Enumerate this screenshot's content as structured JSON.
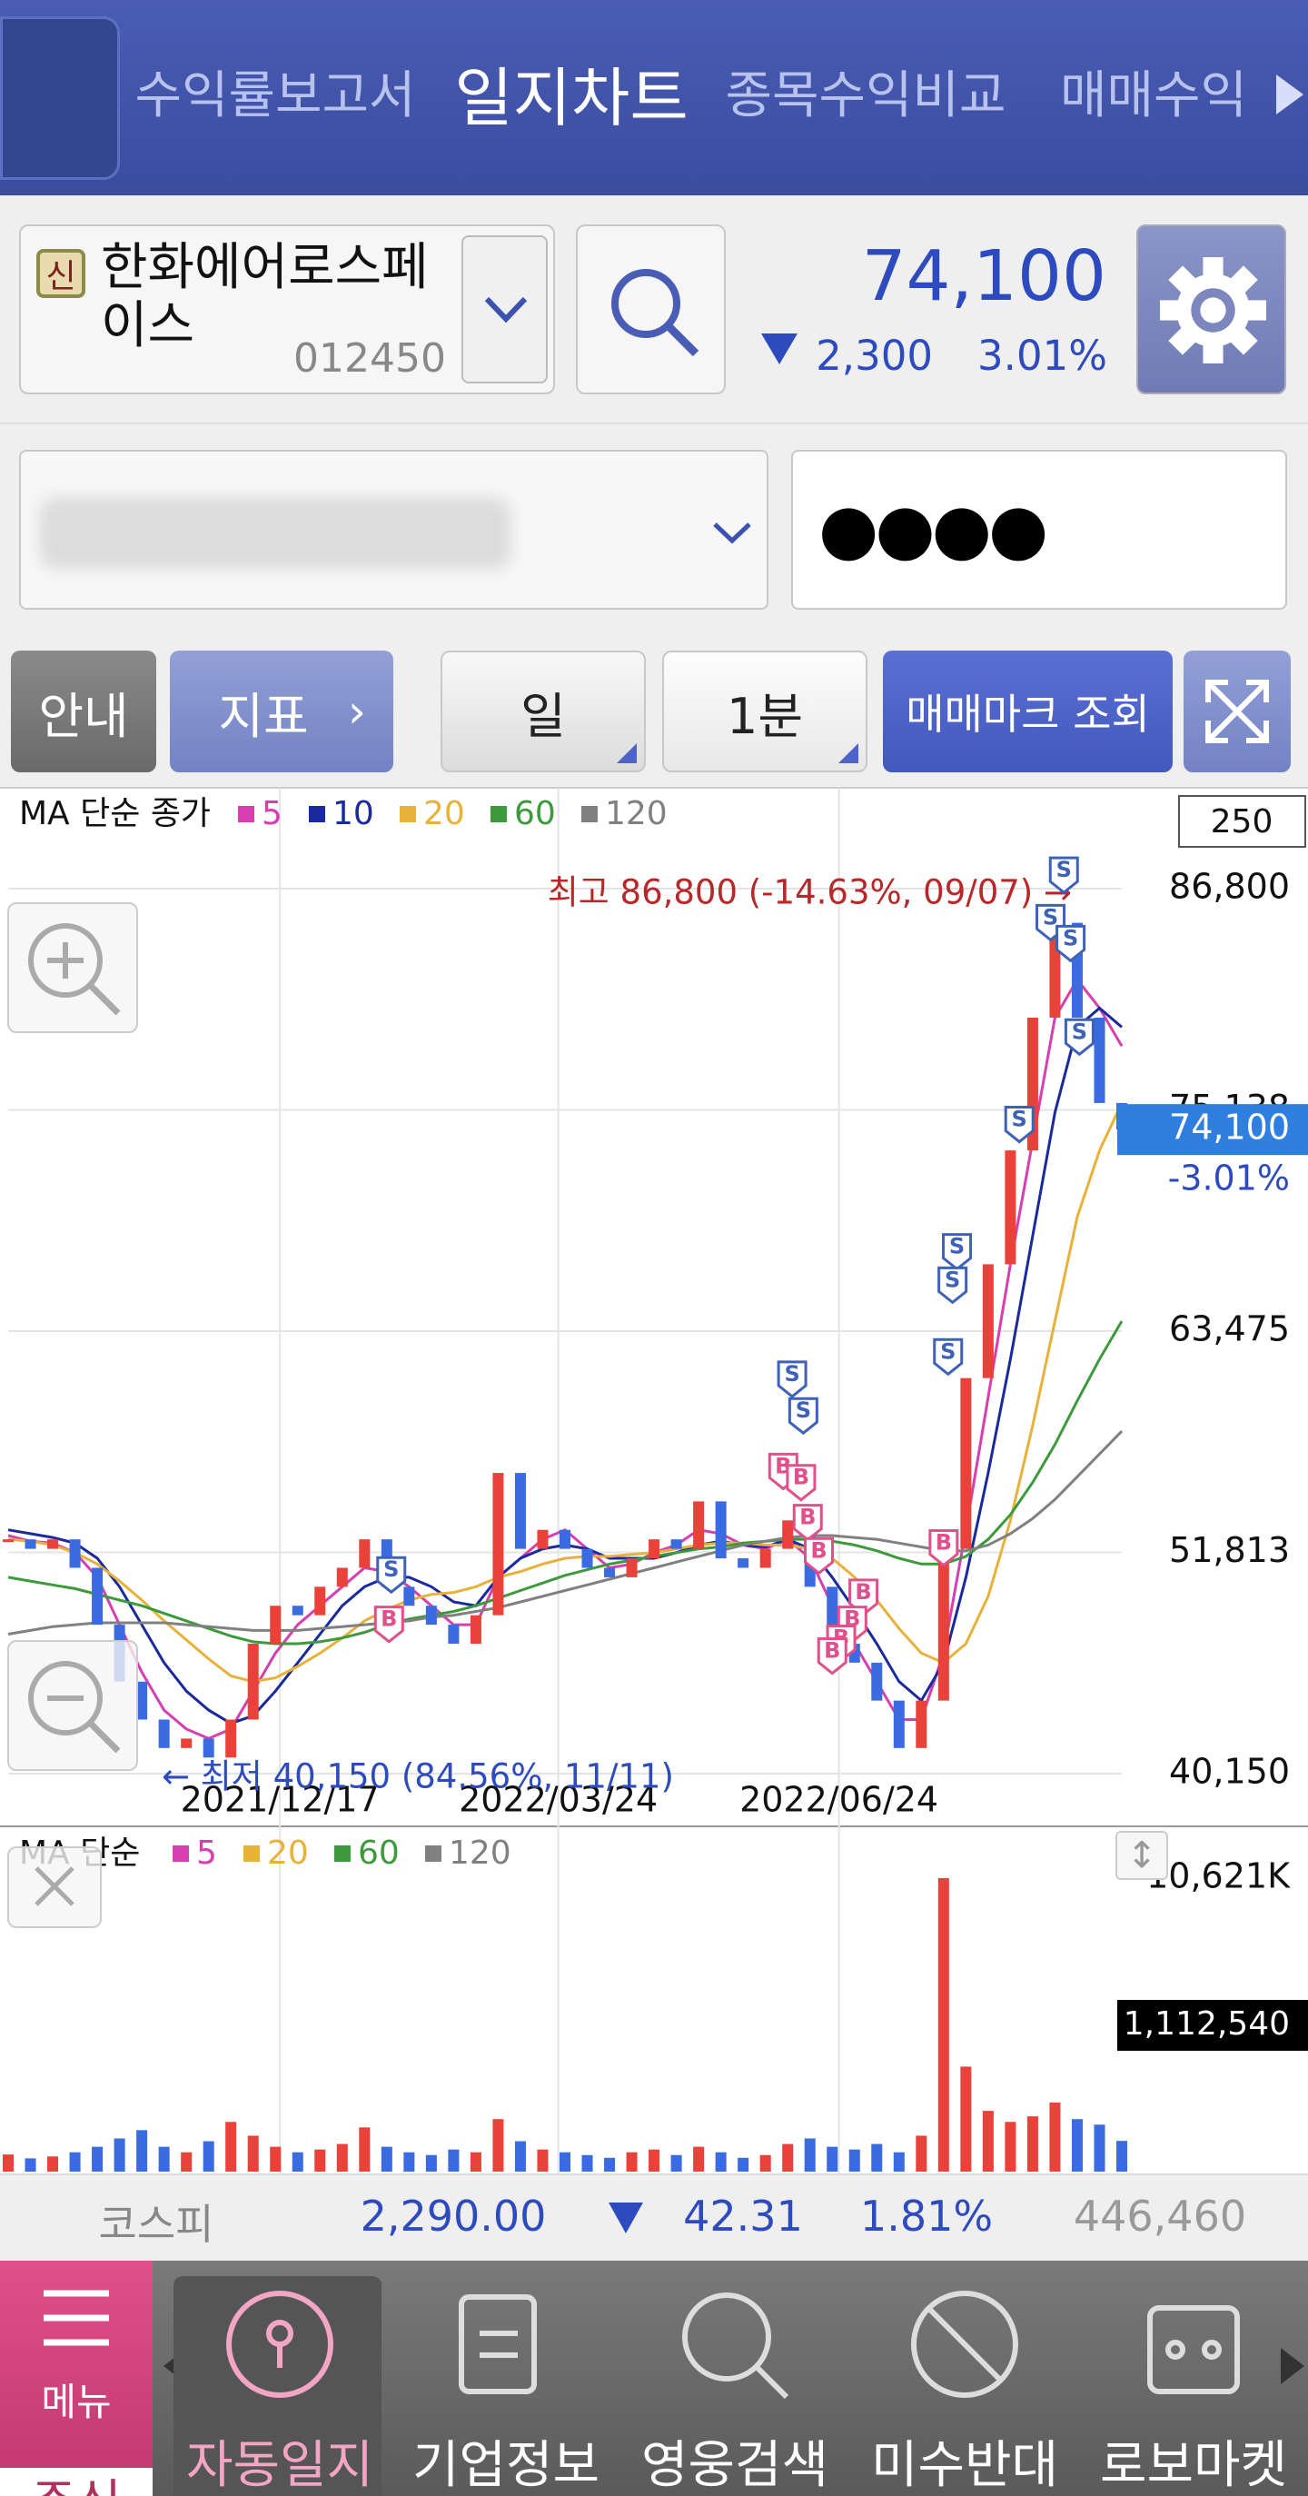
{
  "top_tabs": [
    "수익률보고서",
    "일지차트",
    "종목수익비교",
    "매매수익"
  ],
  "stock": {
    "badge": "신",
    "name": "한화에어로스페이스",
    "code": "012450",
    "price": "74,100",
    "change": "2,300",
    "change_pct": "3.01%"
  },
  "account": {
    "password_mask": "●●●●"
  },
  "buttons": {
    "guide": "안내",
    "indicator": "지표",
    "period": "일",
    "interval": "1분",
    "trade_marks": "매매마크 조회"
  },
  "chart_data": [
    {
      "type": "candlestick",
      "legend_title": "MA 단순 종가",
      "period_box": "250",
      "values": [
        52500,
        52000,
        52500,
        51000,
        48000,
        45000,
        43000,
        41500,
        42000,
        41000,
        43000,
        47000,
        49000,
        48500,
        50000,
        51000,
        52500,
        50000,
        49000,
        48000,
        47000,
        48500,
        56000,
        52000,
        53000,
        52000,
        51000,
        50500,
        51500,
        52500,
        52000,
        54500,
        51500,
        51000,
        52000,
        53500,
        50000,
        47000,
        46000,
        44000,
        41500,
        44000,
        52000,
        61000,
        67000,
        73000,
        80000,
        85000,
        80000,
        75500,
        74100
      ],
      "up_color": "#e8423a",
      "down_color": "#3a6be0",
      "series": [
        {
          "name": "5",
          "color": "#d63fb0",
          "values": [
            52700,
            52400,
            52300,
            51800,
            50500,
            48000,
            45500,
            43500,
            42500,
            42000,
            42500,
            44500,
            46500,
            48000,
            49000,
            50000,
            51000,
            50800,
            50000,
            49000,
            48000,
            48000,
            50500,
            51500,
            52500,
            53000,
            52000,
            51000,
            51200,
            51800,
            52200,
            53000,
            52800,
            52200,
            52000,
            52500,
            51500,
            49000,
            47000,
            45000,
            43000,
            43000,
            46500,
            53000,
            60000,
            67000,
            73500,
            80000,
            82000,
            80500,
            78500
          ]
        },
        {
          "name": "10",
          "color": "#1a2a9c",
          "values": [
            53000,
            52800,
            52600,
            52300,
            51500,
            50000,
            48000,
            46000,
            44500,
            43500,
            42800,
            43200,
            44500,
            46000,
            47500,
            49000,
            50000,
            50500,
            50500,
            50000,
            49200,
            49000,
            50500,
            51500,
            52000,
            52200,
            52000,
            51500,
            51500,
            51500,
            51800,
            52200,
            52400,
            52200,
            52100,
            52500,
            52000,
            50500,
            48800,
            47000,
            45000,
            44000,
            46000,
            50500,
            56000,
            62000,
            68500,
            75000,
            79500,
            80500,
            79500
          ]
        },
        {
          "name": "20",
          "color": "#e8b23a",
          "values": [
            52500,
            52400,
            52200,
            51800,
            51200,
            50300,
            49300,
            48200,
            47200,
            46200,
            45300,
            45000,
            45200,
            45800,
            46500,
            47300,
            48200,
            48800,
            49300,
            49600,
            49700,
            50000,
            50500,
            50800,
            51200,
            51500,
            51600,
            51600,
            51700,
            51800,
            52000,
            52200,
            52300,
            52300,
            52200,
            52200,
            52000,
            51500,
            50500,
            49300,
            47800,
            46500,
            46000,
            47000,
            49500,
            53500,
            58500,
            64000,
            69500,
            73000,
            75500
          ]
        },
        {
          "name": "60",
          "color": "#3c9a3c",
          "values": [
            50500,
            50300,
            50100,
            49900,
            49600,
            49300,
            49000,
            48600,
            48200,
            47800,
            47400,
            47100,
            47000,
            47000,
            47100,
            47300,
            47600,
            48000,
            48300,
            48500,
            48700,
            49000,
            49400,
            49800,
            50200,
            50600,
            50900,
            51200,
            51400,
            51600,
            51800,
            52000,
            52100,
            52300,
            52400,
            52500,
            52500,
            52400,
            52200,
            51900,
            51500,
            51200,
            51200,
            51600,
            52500,
            53800,
            55500,
            57500,
            59800,
            62000,
            64000
          ]
        },
        {
          "name": "120",
          "color": "#808080",
          "values": [
            47500,
            47700,
            47900,
            48000,
            48100,
            48100,
            48100,
            48100,
            48000,
            47900,
            47800,
            47700,
            47700,
            47700,
            47800,
            47900,
            48000,
            48100,
            48200,
            48400,
            48500,
            48700,
            48900,
            49200,
            49500,
            49800,
            50100,
            50400,
            50700,
            51000,
            51300,
            51600,
            51900,
            52200,
            52400,
            52600,
            52700,
            52700,
            52600,
            52500,
            52300,
            52100,
            51900,
            51900,
            52200,
            52800,
            53600,
            54600,
            55800,
            57000,
            58200
          ]
        }
      ],
      "xlim": [
        0,
        50
      ],
      "xticks": [
        {
          "value": 12.2,
          "label": "2021/12/17"
        },
        {
          "value": 24.7,
          "label": "2022/03/24"
        },
        {
          "value": 37.3,
          "label": "2022/06/24"
        }
      ],
      "ylim": [
        40150,
        86800
      ],
      "yticks": [
        {
          "value": 40150,
          "label": "40,150"
        },
        {
          "value": 51813,
          "label": "51,813"
        },
        {
          "value": 63475,
          "label": "63,475"
        },
        {
          "value": 75138,
          "label": "75,138"
        },
        {
          "value": 86800,
          "label": "86,800"
        }
      ],
      "grid": true,
      "current": {
        "value": 74100,
        "label": "74,100",
        "change": "-3.01%"
      },
      "high_annotation": "최고 86,800 (-14.63%, 09/07) →",
      "low_annotation": "← 최저 40,150 (84.56%, 11/11)",
      "trade_marks": [
        {
          "label": "S",
          "x": 47.4,
          "price": 86600
        },
        {
          "label": "S",
          "x": 46.8,
          "price": 84100
        },
        {
          "label": "S",
          "x": 47.7,
          "price": 83000
        },
        {
          "label": "S",
          "x": 48.1,
          "price": 78070
        },
        {
          "label": "S",
          "x": 45.4,
          "price": 73460
        },
        {
          "label": "S",
          "x": 42.6,
          "price": 66750
        },
        {
          "label": "S",
          "x": 42.4,
          "price": 64990
        },
        {
          "label": "S",
          "x": 42.2,
          "price": 61210
        },
        {
          "label": "S",
          "x": 35.2,
          "price": 60030
        },
        {
          "label": "S",
          "x": 35.7,
          "price": 58100
        },
        {
          "label": "S",
          "x": 17.2,
          "price": 49720
        },
        {
          "label": "B",
          "x": 17.1,
          "price": 47110
        },
        {
          "label": "B",
          "x": 34.8,
          "price": 55170
        },
        {
          "label": "B",
          "x": 35.6,
          "price": 54580
        },
        {
          "label": "B",
          "x": 35.9,
          "price": 52480
        },
        {
          "label": "B",
          "x": 36.4,
          "price": 50720
        },
        {
          "label": "B",
          "x": 38.4,
          "price": 48540
        },
        {
          "label": "B",
          "x": 37.9,
          "price": 47110
        },
        {
          "label": "B",
          "x": 37.4,
          "price": 46110
        },
        {
          "label": "B",
          "x": 37.0,
          "price": 45440
        },
        {
          "label": "B",
          "x": 42.0,
          "price": 51140
        }
      ]
    },
    {
      "type": "bar",
      "legend_title": "MA 단순",
      "legend": [
        {
          "name": "5",
          "color": "#d63fb0"
        },
        {
          "name": "20",
          "color": "#e8b23a"
        },
        {
          "name": "60",
          "color": "#3c9a3c"
        },
        {
          "name": "120",
          "color": "#808080"
        }
      ],
      "values": [
        620000,
        480000,
        550000,
        700000,
        900000,
        1200000,
        1500000,
        900000,
        700000,
        1100000,
        1800000,
        1300000,
        900000,
        700000,
        800000,
        1000000,
        1600000,
        900000,
        700000,
        600000,
        800000,
        700000,
        1900000,
        1100000,
        800000,
        700000,
        600000,
        500000,
        700000,
        800000,
        600000,
        900000,
        700000,
        500000,
        600000,
        1000000,
        1200000,
        900000,
        800000,
        1000000,
        700000,
        1300000,
        10621000,
        3800000,
        2200000,
        1800000,
        2000000,
        2500000,
        1900000,
        1700000,
        1112540
      ],
      "xlim": [
        0,
        50
      ],
      "ylim": [
        0,
        10621000
      ],
      "yticks": [
        {
          "value": 10621000,
          "label": "10,621K"
        }
      ],
      "current": {
        "value": 1112540,
        "label": "1,112,540"
      }
    }
  ],
  "market": {
    "name": "코스피",
    "index": "2,290.00",
    "change": "42.31",
    "change_pct": "1.81%",
    "volume": "446,460"
  },
  "nav": {
    "menu": "메뉴",
    "market": "주식",
    "items": [
      "자동일지",
      "기업정보",
      "영웅검색",
      "미수반대",
      "로보마켓"
    ]
  }
}
